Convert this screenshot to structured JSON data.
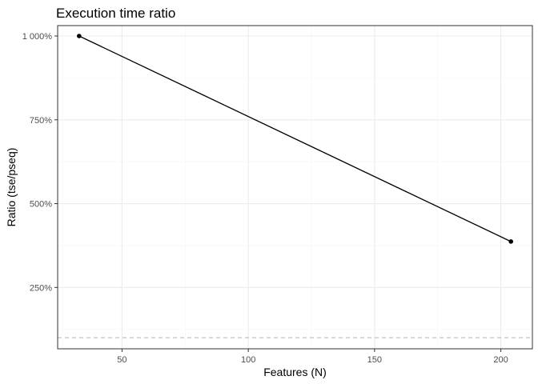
{
  "chart_data": {
    "type": "line",
    "title": "Execution time ratio",
    "xlabel": "Features (N)",
    "ylabel": "Ratio (tse/pseq)",
    "x_ticks": [
      50,
      100,
      150,
      200
    ],
    "x_tick_labels": [
      "50",
      "100",
      "150",
      "200"
    ],
    "y_ticks": [
      250,
      500,
      750,
      1000
    ],
    "y_tick_labels": [
      "250%",
      "500%",
      "750%",
      "1 000%"
    ],
    "xlim": [
      24.5,
      212.5
    ],
    "ylim": [
      67,
      1031
    ],
    "grid": true,
    "series": [
      {
        "x": [
          33,
          204
        ],
        "y": [
          1000,
          387
        ],
        "color": "#000000",
        "markers": true
      }
    ],
    "reference_line": {
      "y": 100,
      "style": "dashed",
      "color": "#b3b3b3"
    },
    "colors": {
      "grid_major": "#ebebeb",
      "grid_minor": "#f5f5f5",
      "panel_border": "#333333"
    }
  }
}
